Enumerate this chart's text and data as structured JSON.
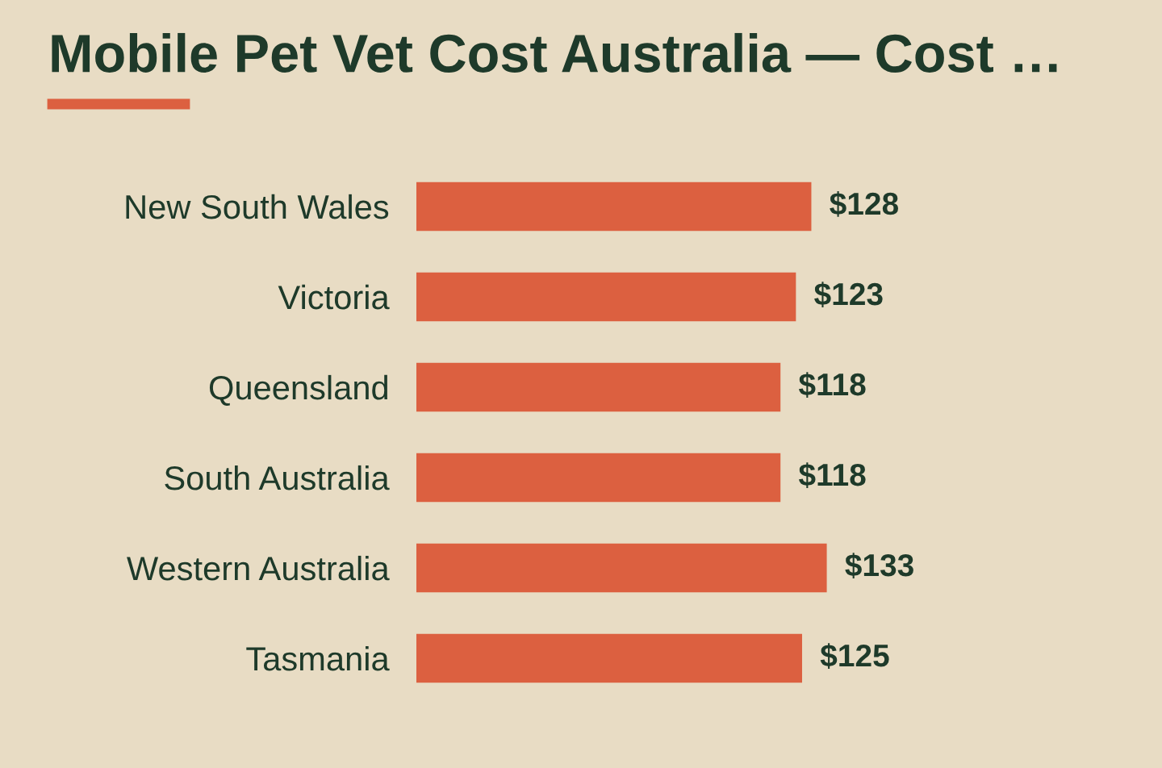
{
  "chart_data": {
    "type": "bar",
    "orientation": "horizontal",
    "title": "Mobile Pet Vet Cost Australia — Cost …",
    "categories": [
      "New South Wales",
      "Victoria",
      "Queensland",
      "South Australia",
      "Western Australia",
      "Tasmania"
    ],
    "values": [
      128,
      123,
      118,
      118,
      133,
      125
    ],
    "value_labels": [
      "$128",
      "$123",
      "$118",
      "$118",
      "$133",
      "$125"
    ],
    "color": "#dc6040",
    "tick_labels": "y",
    "grid": false,
    "legend": false
  }
}
